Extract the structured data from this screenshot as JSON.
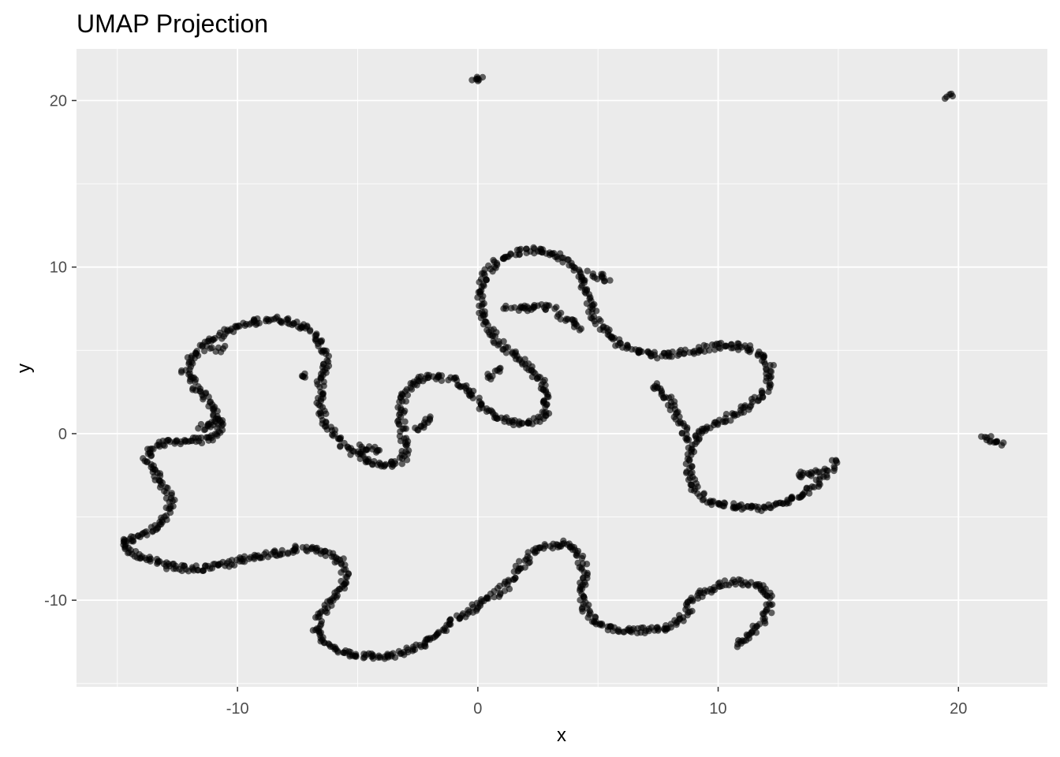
{
  "chart_data": {
    "type": "scatter",
    "title": "UMAP Projection",
    "xlabel": "x",
    "ylabel": "y",
    "xlim": [
      -16.7,
      23.7
    ],
    "ylim": [
      -15.2,
      23.1
    ],
    "x_ticks": [
      -10,
      0,
      10,
      20
    ],
    "y_ticks": [
      -10,
      0,
      10,
      20
    ],
    "x_tick_labels": [
      "-10",
      "0",
      "10",
      "20"
    ],
    "y_tick_labels": [
      "-10",
      "0",
      "10",
      "20"
    ],
    "grid": true,
    "legend": "none",
    "colors": {
      "panel": "#ebebeb",
      "grid_major": "#ffffff",
      "point": "#000000",
      "tick": "#333333"
    },
    "point_alpha": 0.6,
    "series": [
      {
        "points": [
          [
            -14.8,
            -6.6
          ],
          [
            -14.2,
            -6.2
          ],
          [
            -13.5,
            -5.7
          ],
          [
            -13.0,
            -5.0
          ],
          [
            -12.7,
            -4.2
          ],
          [
            -13.0,
            -3.3
          ],
          [
            -13.4,
            -2.4
          ],
          [
            -13.8,
            -1.5
          ],
          [
            -13.5,
            -0.8
          ],
          [
            -12.8,
            -0.5
          ],
          [
            -12.0,
            -0.4
          ],
          [
            -11.3,
            -0.4
          ],
          [
            -10.8,
            -0.1
          ],
          [
            -10.7,
            0.5
          ],
          [
            -10.9,
            1.3
          ],
          [
            -11.3,
            2.1
          ],
          [
            -11.8,
            2.9
          ],
          [
            -12.2,
            3.8
          ],
          [
            -11.8,
            4.7
          ],
          [
            -11.2,
            5.5
          ],
          [
            -10.5,
            6.1
          ],
          [
            -9.6,
            6.6
          ],
          [
            -8.7,
            6.9
          ],
          [
            -8.0,
            6.8
          ],
          [
            -7.3,
            6.5
          ],
          [
            -6.8,
            6.0
          ],
          [
            -6.5,
            5.2
          ],
          [
            -6.3,
            4.3
          ],
          [
            -6.5,
            3.4
          ],
          [
            -6.6,
            2.5
          ],
          [
            -6.6,
            1.5
          ],
          [
            -6.3,
            0.5
          ],
          [
            -5.8,
            -0.4
          ],
          [
            -5.2,
            -1.1
          ],
          [
            -4.6,
            -1.6
          ],
          [
            -3.9,
            -1.9
          ],
          [
            -3.3,
            -1.8
          ],
          [
            -3.0,
            -1.3
          ],
          [
            -3.0,
            -0.6
          ],
          [
            -3.1,
            0.2
          ],
          [
            -3.2,
            1.0
          ],
          [
            -3.2,
            1.8
          ],
          [
            -3.0,
            2.6
          ],
          [
            -2.5,
            3.2
          ],
          [
            -1.9,
            3.5
          ],
          [
            -1.2,
            3.3
          ],
          [
            -0.6,
            2.8
          ],
          [
            -0.1,
            2.1
          ],
          [
            0.3,
            1.5
          ],
          [
            0.8,
            1.0
          ],
          [
            1.3,
            0.7
          ],
          [
            1.9,
            0.6
          ],
          [
            2.5,
            0.8
          ],
          [
            2.9,
            1.3
          ],
          [
            2.9,
            2.1
          ],
          [
            2.7,
            2.9
          ],
          [
            2.3,
            3.7
          ],
          [
            1.7,
            4.5
          ],
          [
            1.0,
            5.3
          ],
          [
            0.5,
            6.2
          ],
          [
            0.2,
            7.1
          ],
          [
            0.1,
            8.0
          ],
          [
            0.1,
            8.9
          ],
          [
            0.4,
            9.7
          ],
          [
            0.9,
            10.4
          ],
          [
            1.6,
            10.9
          ],
          [
            2.4,
            11.0
          ],
          [
            3.2,
            10.8
          ],
          [
            3.8,
            10.3
          ],
          [
            4.2,
            9.6
          ],
          [
            4.4,
            8.8
          ],
          [
            4.6,
            8.0
          ],
          [
            4.8,
            7.2
          ],
          [
            5.1,
            6.4
          ],
          [
            5.6,
            5.7
          ],
          [
            6.2,
            5.2
          ],
          [
            6.9,
            4.9
          ],
          [
            7.6,
            4.7
          ],
          [
            8.3,
            4.8
          ],
          [
            9.0,
            5.0
          ],
          [
            9.7,
            5.2
          ],
          [
            10.5,
            5.3
          ],
          [
            11.3,
            5.1
          ],
          [
            11.9,
            4.6
          ],
          [
            12.2,
            3.9
          ],
          [
            12.1,
            3.1
          ],
          [
            11.8,
            2.3
          ],
          [
            11.2,
            1.6
          ],
          [
            10.5,
            1.0
          ],
          [
            9.8,
            0.5
          ],
          [
            9.2,
            0.0
          ],
          [
            8.9,
            -0.8
          ],
          [
            8.8,
            -1.6
          ],
          [
            8.8,
            -2.5
          ],
          [
            9.0,
            -3.3
          ],
          [
            9.4,
            -3.9
          ],
          [
            10.0,
            -4.2
          ],
          [
            10.8,
            -4.4
          ],
          [
            11.7,
            -4.5
          ],
          [
            12.5,
            -4.3
          ],
          [
            13.3,
            -3.8
          ],
          [
            14.0,
            -3.1
          ],
          [
            14.5,
            -2.4
          ],
          [
            14.9,
            -1.6
          ]
        ]
      },
      {
        "points": [
          [
            -14.8,
            -6.6
          ],
          [
            -14.3,
            -7.2
          ],
          [
            -13.7,
            -7.6
          ],
          [
            -13.0,
            -7.9
          ],
          [
            -12.2,
            -8.1
          ],
          [
            -11.4,
            -8.1
          ],
          [
            -10.6,
            -7.9
          ],
          [
            -9.8,
            -7.6
          ],
          [
            -9.0,
            -7.3
          ],
          [
            -8.2,
            -7.1
          ],
          [
            -7.4,
            -6.9
          ],
          [
            -6.7,
            -7.0
          ],
          [
            -6.0,
            -7.3
          ],
          [
            -5.6,
            -7.9
          ],
          [
            -5.5,
            -8.7
          ],
          [
            -5.7,
            -9.5
          ],
          [
            -6.2,
            -10.3
          ],
          [
            -6.6,
            -11.0
          ],
          [
            -6.8,
            -11.8
          ],
          [
            -6.5,
            -12.5
          ],
          [
            -5.8,
            -13.0
          ],
          [
            -5.0,
            -13.3
          ],
          [
            -4.2,
            -13.4
          ],
          [
            -3.4,
            -13.3
          ],
          [
            -2.6,
            -12.9
          ],
          [
            -1.9,
            -12.3
          ],
          [
            -1.3,
            -11.6
          ],
          [
            -0.6,
            -10.8
          ],
          [
            0.2,
            -10.1
          ],
          [
            0.9,
            -9.5
          ],
          [
            1.4,
            -8.8
          ],
          [
            1.7,
            -8.0
          ],
          [
            2.2,
            -7.3
          ],
          [
            2.8,
            -6.8
          ],
          [
            3.5,
            -6.6
          ],
          [
            4.1,
            -7.0
          ],
          [
            4.4,
            -7.8
          ],
          [
            4.4,
            -8.8
          ],
          [
            4.4,
            -9.8
          ],
          [
            4.5,
            -10.7
          ],
          [
            4.9,
            -11.4
          ],
          [
            5.6,
            -11.7
          ],
          [
            6.4,
            -11.8
          ],
          [
            7.2,
            -11.8
          ],
          [
            8.0,
            -11.6
          ],
          [
            8.6,
            -11.0
          ],
          [
            8.9,
            -10.2
          ],
          [
            9.4,
            -9.5
          ],
          [
            10.0,
            -9.1
          ],
          [
            10.7,
            -8.9
          ]
        ]
      },
      {
        "points": [
          [
            10.9,
            -8.9
          ],
          [
            11.3,
            -9.0
          ],
          [
            11.7,
            -9.2
          ],
          [
            12.0,
            -9.5
          ],
          [
            12.2,
            -10.0
          ],
          [
            12.1,
            -10.7
          ],
          [
            11.8,
            -11.4
          ],
          [
            11.4,
            -12.0
          ],
          [
            11.0,
            -12.5
          ],
          [
            10.8,
            -12.8
          ]
        ]
      },
      {
        "points": [
          [
            -0.2,
            21.1
          ],
          [
            0.0,
            21.3
          ],
          [
            0.2,
            21.4
          ]
        ]
      },
      {
        "points": [
          [
            19.5,
            20.2
          ],
          [
            19.6,
            20.3
          ],
          [
            19.7,
            20.4
          ]
        ]
      },
      {
        "points": [
          [
            21.0,
            -0.2
          ],
          [
            21.4,
            -0.4
          ],
          [
            21.8,
            -0.7
          ]
        ]
      },
      {
        "points": [
          [
            7.3,
            3.0
          ],
          [
            7.8,
            2.3
          ],
          [
            8.2,
            1.4
          ],
          [
            8.5,
            0.5
          ],
          [
            8.7,
            -0.4
          ]
        ]
      },
      {
        "points": [
          [
            13.3,
            -2.4
          ],
          [
            13.8,
            -2.5
          ],
          [
            14.2,
            -2.3
          ]
        ]
      },
      {
        "points": [
          [
            0.4,
            3.4
          ],
          [
            0.7,
            3.6
          ],
          [
            0.9,
            3.9
          ]
        ]
      },
      {
        "points": [
          [
            -2.6,
            0.3
          ],
          [
            -2.3,
            0.6
          ],
          [
            -2.0,
            0.9
          ]
        ]
      },
      {
        "points": [
          [
            4.7,
            9.6
          ],
          [
            5.1,
            9.4
          ],
          [
            5.5,
            9.2
          ]
        ]
      },
      {
        "points": [
          [
            1.2,
            7.6
          ],
          [
            1.8,
            7.5
          ],
          [
            2.5,
            7.6
          ],
          [
            3.2,
            7.5
          ]
        ]
      },
      {
        "points": [
          [
            3.4,
            7.2
          ],
          [
            3.8,
            6.8
          ],
          [
            4.3,
            6.3
          ]
        ]
      },
      {
        "points": [
          [
            -11.6,
            0.3
          ],
          [
            -11.2,
            0.6
          ],
          [
            -10.8,
            0.9
          ]
        ]
      },
      {
        "points": [
          [
            -11.0,
            5.0
          ],
          [
            -10.6,
            5.1
          ]
        ]
      },
      {
        "points": [
          [
            -7.3,
            3.3
          ],
          [
            -7.2,
            3.6
          ]
        ]
      },
      {
        "points": [
          [
            -4.9,
            -0.8
          ],
          [
            -4.5,
            -0.9
          ],
          [
            -4.1,
            -1.0
          ]
        ]
      }
    ]
  }
}
